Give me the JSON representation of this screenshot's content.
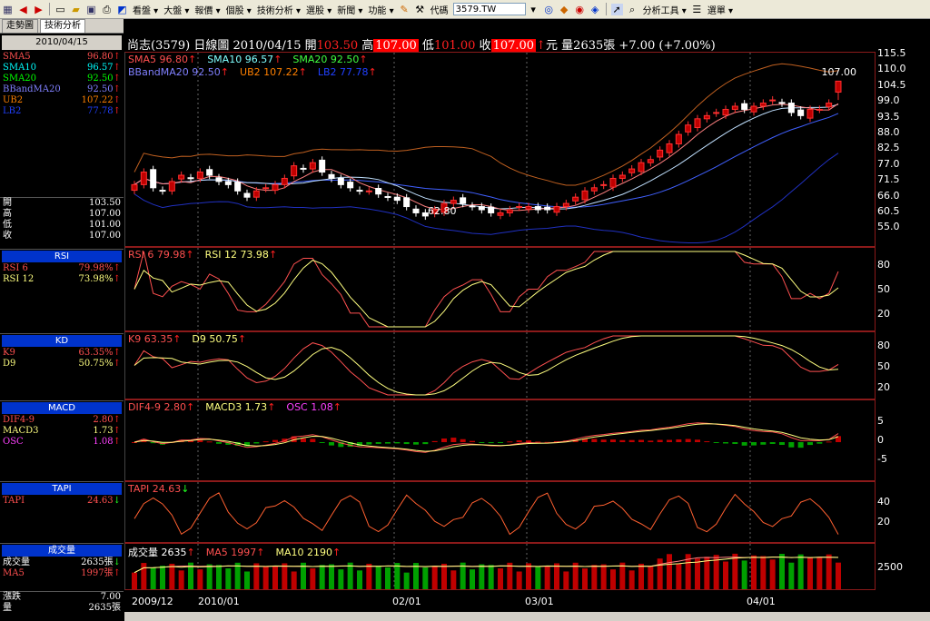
{
  "toolbar": {
    "menus": [
      "看盤 ▾",
      "大盤 ▾",
      "報價 ▾",
      "個股 ▾",
      "技術分析 ▾",
      "選股 ▾",
      "新聞 ▾",
      "功能 ▾"
    ],
    "code_label": "代碼",
    "code_value": "3579.TW",
    "tools_label": "分析工具 ▾",
    "menu_label": "選單 ▾"
  },
  "left": {
    "tabs": [
      "走勢圖",
      "技術分析"
    ],
    "date": "2010/04/15",
    "sma_rows": [
      {
        "label": "SMA5",
        "value": "96.80",
        "color": "#ff5050",
        "arrow": "up"
      },
      {
        "label": "SMA10",
        "value": "96.57",
        "color": "#00ffff",
        "arrow": "up"
      },
      {
        "label": "SMA20",
        "value": "92.50",
        "color": "#00ff00",
        "arrow": "up"
      },
      {
        "label": "BBandMA20",
        "value": "92.50",
        "color": "#8080ff",
        "arrow": "up"
      },
      {
        "label": "UB2",
        "value": "107.22",
        "color": "#ff8000",
        "arrow": "up"
      },
      {
        "label": "LB2",
        "value": "77.78",
        "color": "#2040ff",
        "arrow": "up"
      }
    ],
    "ohlc": [
      {
        "label": "開",
        "value": "103.50"
      },
      {
        "label": "高",
        "value": "107.00"
      },
      {
        "label": "低",
        "value": "101.00"
      },
      {
        "label": "收",
        "value": "107.00"
      }
    ],
    "rsi": {
      "title": "RSI",
      "rows": [
        {
          "label": "RSI 6",
          "value": "79.98%",
          "color": "#ff5050"
        },
        {
          "label": "RSI 12",
          "value": "73.98%",
          "color": "#ffff80"
        }
      ]
    },
    "kd": {
      "title": "KD",
      "rows": [
        {
          "label": "K9",
          "value": "63.35%",
          "color": "#ff5050"
        },
        {
          "label": "D9",
          "value": "50.75%",
          "color": "#ffff80"
        }
      ]
    },
    "macd": {
      "title": "MACD",
      "rows": [
        {
          "label": "DIF4-9",
          "value": "2.80",
          "color": "#ff5050"
        },
        {
          "label": "MACD3",
          "value": "1.73",
          "color": "#ffff80"
        },
        {
          "label": "OSC",
          "value": "1.08",
          "color": "#ff40ff"
        }
      ]
    },
    "tapi": {
      "title": "TAPI",
      "rows": [
        {
          "label": "TAPI",
          "value": "24.63",
          "color": "#ff5050",
          "arrow": "down"
        }
      ]
    },
    "vol": {
      "title": "成交量",
      "rows": [
        {
          "label": "成交量",
          "value": "2635張",
          "color": "#ffffff",
          "arrow": "down"
        },
        {
          "label": "MA5",
          "value": "1997張",
          "color": "#ff5050",
          "arrow": "up"
        }
      ]
    },
    "bottom": [
      {
        "label": "漲跌",
        "value": "7.00"
      },
      {
        "label": "量",
        "value": "2635張"
      }
    ]
  },
  "header": {
    "name": "尚志(3579)",
    "period": "日線圖",
    "date": "2010/04/15",
    "open_label": "開",
    "open": "103.50",
    "high_label": "高",
    "high": "107.00",
    "low_label": "低",
    "low": "101.00",
    "close_label": "收",
    "close": "107.00",
    "unit": "元",
    "vol_label": "量",
    "vol": "2635",
    "vol_unit": "張",
    "change": "+7.00 (+7.00%)"
  },
  "price_pane": {
    "legend1": [
      {
        "text": "SMA5 96.80",
        "color": "#ff5050"
      },
      {
        "text": "SMA10 96.57",
        "color": "#80ffff"
      },
      {
        "text": "SMA20 92.50",
        "color": "#40ff40"
      }
    ],
    "legend2": [
      {
        "text": "BBandMA20 92.50",
        "color": "#8080ff"
      },
      {
        "text": "UB2 107.22",
        "color": "#ff8000"
      },
      {
        "text": "LB2 77.78",
        "color": "#2040ff"
      }
    ],
    "axis": [
      "115.5",
      "110.0",
      "104.5",
      "99.0",
      "93.5",
      "88.0",
      "82.5",
      "77.0",
      "71.5",
      "66.0",
      "60.5",
      "55.0"
    ],
    "hi_mark": "107.00",
    "lo_mark": "62.80"
  },
  "rsi_pane": {
    "legend": [
      {
        "text": "RSI 6 79.98",
        "color": "#ff5050"
      },
      {
        "text": "RSI 12 73.98",
        "color": "#ffff80"
      }
    ],
    "axis": [
      "80",
      "50",
      "20"
    ]
  },
  "kd_pane": {
    "legend": [
      {
        "text": "K9 63.35",
        "color": "#ff5050"
      },
      {
        "text": "D9 50.75",
        "color": "#ffff80"
      }
    ],
    "axis": [
      "80",
      "50",
      "20"
    ]
  },
  "macd_pane": {
    "legend": [
      {
        "text": "DIF4-9 2.80",
        "color": "#ff5050"
      },
      {
        "text": "MACD3 1.73",
        "color": "#ffff80"
      },
      {
        "text": "OSC 1.08",
        "color": "#ff40ff"
      }
    ],
    "axis": [
      "5",
      "0",
      "-5"
    ]
  },
  "tapi_pane": {
    "legend": [
      {
        "text": "TAPI 24.63",
        "color": "#ff5050"
      }
    ],
    "axis": [
      "40",
      "20"
    ]
  },
  "vol_pane": {
    "legend": [
      {
        "text": "成交量 2635",
        "color": "#ffffff"
      },
      {
        "text": "MA5 1997",
        "color": "#ff5050"
      },
      {
        "text": "MA10 2190",
        "color": "#ffff80"
      }
    ],
    "axis": [
      "2500"
    ]
  },
  "x_dates": [
    "2009/12",
    "2010/01",
    "02/01",
    "03/01",
    "04/01"
  ],
  "colors": {
    "up": "#ff2020",
    "down": "#20ff20",
    "border": "#8b1a1a",
    "panel_head": "#0033cc"
  },
  "chart_data": {
    "type": "candlestick",
    "title": "尚志(3579) 日線圖",
    "x_tick_labels": [
      "2009/12",
      "2010/01",
      "02/01",
      "03/01",
      "04/01"
    ],
    "y_range": [
      55.0,
      115.5
    ],
    "closes": [
      74,
      78,
      73,
      72,
      75,
      77,
      76,
      78,
      77,
      75,
      74,
      72,
      70,
      72,
      73,
      74,
      76,
      80,
      79,
      81,
      78,
      76,
      74,
      73,
      72,
      72,
      71,
      70,
      69,
      67,
      65,
      64,
      66,
      68,
      69,
      68,
      67,
      66,
      65,
      65,
      66,
      67,
      67,
      66,
      66,
      67,
      68,
      70,
      72,
      73,
      74,
      76,
      77,
      79,
      81,
      82,
      85,
      87,
      90,
      93,
      95,
      96,
      97,
      98,
      99,
      98,
      99,
      100,
      101,
      100,
      97,
      96,
      98,
      98,
      100,
      107
    ],
    "last_bar": {
      "open": 103.5,
      "high": 107.0,
      "low": 101.0,
      "close": 107.0
    },
    "rsi6_last": 79.98,
    "rsi12_last": 73.98,
    "k9_last": 63.35,
    "d9_last": 50.75,
    "dif_last": 2.8,
    "macd_last": 1.73,
    "osc_last": 1.08,
    "tapi_last": 24.63,
    "volume_last": 2635,
    "vol_ma5": 1997,
    "vol_ma10": 2190
  }
}
